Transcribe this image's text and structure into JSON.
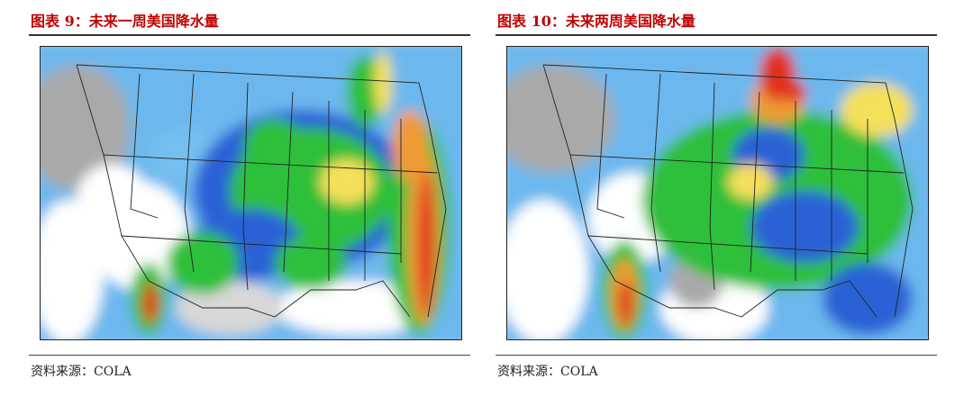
{
  "figures": [
    {
      "title": "图表 9：未来一周美国降水量",
      "source": "资料来源：COLA",
      "map_icon": "us-precipitation-forecast-map-1week"
    },
    {
      "title": "图表 10：未来两周美国降水量",
      "source": "资料来源：COLA",
      "map_icon": "us-precipitation-forecast-map-2week"
    }
  ],
  "palette": {
    "title_color": "#c00000",
    "grey": "#a9a9a9",
    "light_blue": "#74c0f0",
    "blue": "#2a62d6",
    "green": "#2fbf3a",
    "yellow": "#f5e05a",
    "orange": "#f09a35",
    "red": "#e0321f"
  }
}
